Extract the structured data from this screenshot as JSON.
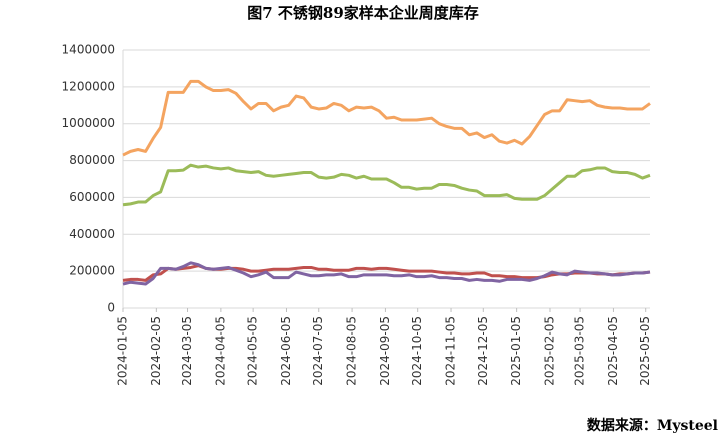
{
  "chart_data": {
    "type": "line",
    "title": "图7 不锈钢89家样本企业周度库存",
    "source": "数据来源：Mysteel",
    "x": [
      "2024-01-05",
      "2024-01-12",
      "2024-01-19",
      "2024-01-26",
      "2024-02-02",
      "2024-02-09",
      "2024-02-16",
      "2024-02-23",
      "2024-03-01",
      "2024-03-08",
      "2024-03-15",
      "2024-03-22",
      "2024-03-29",
      "2024-04-05",
      "2024-04-12",
      "2024-04-19",
      "2024-04-26",
      "2024-05-03",
      "2024-05-10",
      "2024-05-17",
      "2024-05-24",
      "2024-05-31",
      "2024-06-07",
      "2024-06-14",
      "2024-06-21",
      "2024-06-28",
      "2024-07-05",
      "2024-07-12",
      "2024-07-19",
      "2024-07-26",
      "2024-08-02",
      "2024-08-09",
      "2024-08-16",
      "2024-08-23",
      "2024-08-30",
      "2024-09-06",
      "2024-09-13",
      "2024-09-20",
      "2024-09-27",
      "2024-10-04",
      "2024-10-11",
      "2024-10-18",
      "2024-10-25",
      "2024-11-01",
      "2024-11-08",
      "2024-11-15",
      "2024-11-22",
      "2024-11-29",
      "2024-12-06",
      "2024-12-13",
      "2024-12-20",
      "2024-12-27",
      "2025-01-03",
      "2025-01-10",
      "2025-01-17",
      "2025-01-24",
      "2025-01-31",
      "2025-02-07",
      "2025-02-14",
      "2025-02-21",
      "2025-02-28",
      "2025-03-07",
      "2025-03-14",
      "2025-03-21",
      "2025-03-28",
      "2025-04-04",
      "2025-04-11",
      "2025-04-18",
      "2025-04-25",
      "2025-05-02",
      "2025-05-09"
    ],
    "series": [
      {
        "color": "#f4a460",
        "values": [
          830000,
          850000,
          860000,
          850000,
          920000,
          980000,
          1170000,
          1170000,
          1170000,
          1230000,
          1230000,
          1200000,
          1180000,
          1180000,
          1185000,
          1165000,
          1120000,
          1080000,
          1110000,
          1110000,
          1070000,
          1090000,
          1100000,
          1150000,
          1140000,
          1090000,
          1080000,
          1085000,
          1110000,
          1100000,
          1070000,
          1090000,
          1085000,
          1090000,
          1070000,
          1030000,
          1035000,
          1020000,
          1020000,
          1020000,
          1025000,
          1030000,
          1000000,
          985000,
          975000,
          975000,
          940000,
          950000,
          925000,
          940000,
          905000,
          895000,
          910000,
          890000,
          930000,
          990000,
          1050000,
          1070000,
          1070000,
          1130000,
          1125000,
          1120000,
          1125000,
          1100000,
          1090000,
          1085000,
          1085000,
          1080000,
          1080000,
          1080000,
          1110000
        ]
      },
      {
        "color": "#9bbb59",
        "values": [
          560000,
          565000,
          575000,
          575000,
          610000,
          630000,
          745000,
          745000,
          748000,
          775000,
          765000,
          770000,
          760000,
          755000,
          760000,
          745000,
          740000,
          735000,
          740000,
          720000,
          715000,
          720000,
          725000,
          730000,
          735000,
          735000,
          710000,
          705000,
          710000,
          725000,
          720000,
          705000,
          715000,
          700000,
          700000,
          700000,
          680000,
          655000,
          655000,
          645000,
          650000,
          650000,
          670000,
          670000,
          665000,
          650000,
          640000,
          635000,
          610000,
          610000,
          610000,
          615000,
          595000,
          590000,
          590000,
          590000,
          610000,
          645000,
          680000,
          715000,
          715000,
          745000,
          750000,
          760000,
          760000,
          740000,
          735000,
          735000,
          725000,
          705000,
          720000
        ]
      },
      {
        "color": "#c0504d",
        "values": [
          150000,
          155000,
          155000,
          150000,
          180000,
          185000,
          215000,
          210000,
          215000,
          220000,
          230000,
          215000,
          210000,
          210000,
          215000,
          215000,
          210000,
          200000,
          200000,
          205000,
          210000,
          210000,
          210000,
          215000,
          220000,
          220000,
          210000,
          210000,
          205000,
          205000,
          205000,
          215000,
          215000,
          210000,
          215000,
          215000,
          210000,
          205000,
          200000,
          200000,
          200000,
          200000,
          195000,
          190000,
          190000,
          185000,
          185000,
          190000,
          190000,
          175000,
          175000,
          170000,
          170000,
          165000,
          165000,
          165000,
          170000,
          180000,
          185000,
          185000,
          190000,
          190000,
          190000,
          185000,
          185000,
          180000,
          185000,
          185000,
          190000,
          190000,
          195000
        ]
      },
      {
        "color": "#8064a2",
        "values": [
          130000,
          140000,
          135000,
          130000,
          160000,
          215000,
          215000,
          210000,
          225000,
          245000,
          235000,
          215000,
          210000,
          215000,
          220000,
          205000,
          190000,
          170000,
          180000,
          195000,
          165000,
          165000,
          165000,
          195000,
          185000,
          175000,
          175000,
          180000,
          180000,
          185000,
          170000,
          170000,
          180000,
          180000,
          180000,
          180000,
          175000,
          175000,
          180000,
          170000,
          170000,
          175000,
          165000,
          165000,
          160000,
          160000,
          150000,
          155000,
          150000,
          150000,
          145000,
          155000,
          155000,
          155000,
          150000,
          160000,
          175000,
          195000,
          185000,
          180000,
          200000,
          195000,
          190000,
          190000,
          185000,
          180000,
          180000,
          185000,
          190000,
          190000,
          195000
        ]
      }
    ],
    "xlim": [
      "2024-01-05",
      "2025-05-09"
    ],
    "xticks": [
      "2024-01-05",
      "2024-02-05",
      "2024-03-05",
      "2024-04-05",
      "2024-05-05",
      "2024-06-05",
      "2024-07-05",
      "2024-08-05",
      "2024-09-05",
      "2024-10-05",
      "2024-11-05",
      "2024-12-05",
      "2025-01-05",
      "2025-02-05",
      "2025-03-05",
      "2025-04-05",
      "2025-05-05"
    ],
    "ylim": [
      0,
      1400000
    ],
    "yticks": [
      0,
      200000,
      400000,
      600000,
      800000,
      1000000,
      1200000,
      1400000
    ],
    "grid": true
  }
}
